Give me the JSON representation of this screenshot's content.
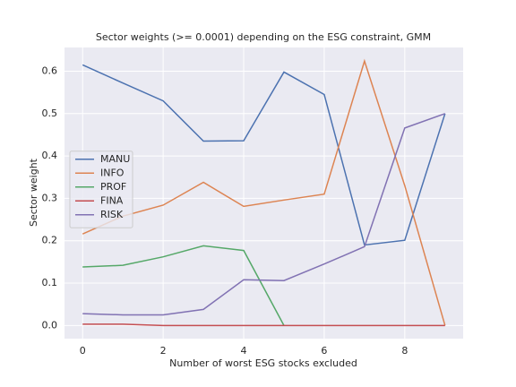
{
  "chart_data": {
    "type": "line",
    "title": "Sector weights (>= 0.0001) depending on the ESG constraint, GMM",
    "xlabel": "Number of worst ESG stocks excluded",
    "ylabel": "Sector weight",
    "x": [
      0,
      1,
      2,
      3,
      4,
      5,
      6,
      7,
      8,
      9
    ],
    "series": [
      {
        "name": "MANU",
        "color": "#4c72b0",
        "values": [
          0.615,
          0.572,
          0.53,
          0.435,
          0.436,
          0.598,
          0.545,
          0.19,
          0.201,
          0.5
        ]
      },
      {
        "name": "INFO",
        "color": "#dd8452",
        "values": [
          0.216,
          0.258,
          0.284,
          0.338,
          0.281,
          0.296,
          0.31,
          0.624,
          0.33,
          0.0
        ]
      },
      {
        "name": "PROF",
        "color": "#55a868",
        "values": [
          0.138,
          0.142,
          0.162,
          0.188,
          0.177,
          0.0,
          null,
          null,
          null,
          null
        ]
      },
      {
        "name": "FINA",
        "color": "#c44e52",
        "values": [
          0.003,
          0.003,
          0.0,
          0.0,
          0.0,
          0.0,
          0.0,
          0.0,
          0.0,
          0.0
        ]
      },
      {
        "name": "RISK",
        "color": "#8172b3",
        "values": [
          0.028,
          0.025,
          0.025,
          0.038,
          0.108,
          0.106,
          0.145,
          0.186,
          0.466,
          0.5
        ]
      }
    ],
    "xlim": [
      -0.45,
      9.45
    ],
    "xticks": [
      0,
      2,
      4,
      6,
      8
    ],
    "ylim": [
      -0.031,
      0.656
    ],
    "yticks": [
      {
        "value": 0,
        "label": "0.0"
      },
      {
        "value": 0.1,
        "label": "0.1"
      },
      {
        "value": 0.2,
        "label": "0.2"
      },
      {
        "value": 0.3,
        "label": "0.3"
      },
      {
        "value": 0.4,
        "label": "0.4"
      },
      {
        "value": 0.5,
        "label": "0.5"
      },
      {
        "value": 0.6,
        "label": "0.6"
      }
    ],
    "grid": true,
    "legend": "center left"
  }
}
